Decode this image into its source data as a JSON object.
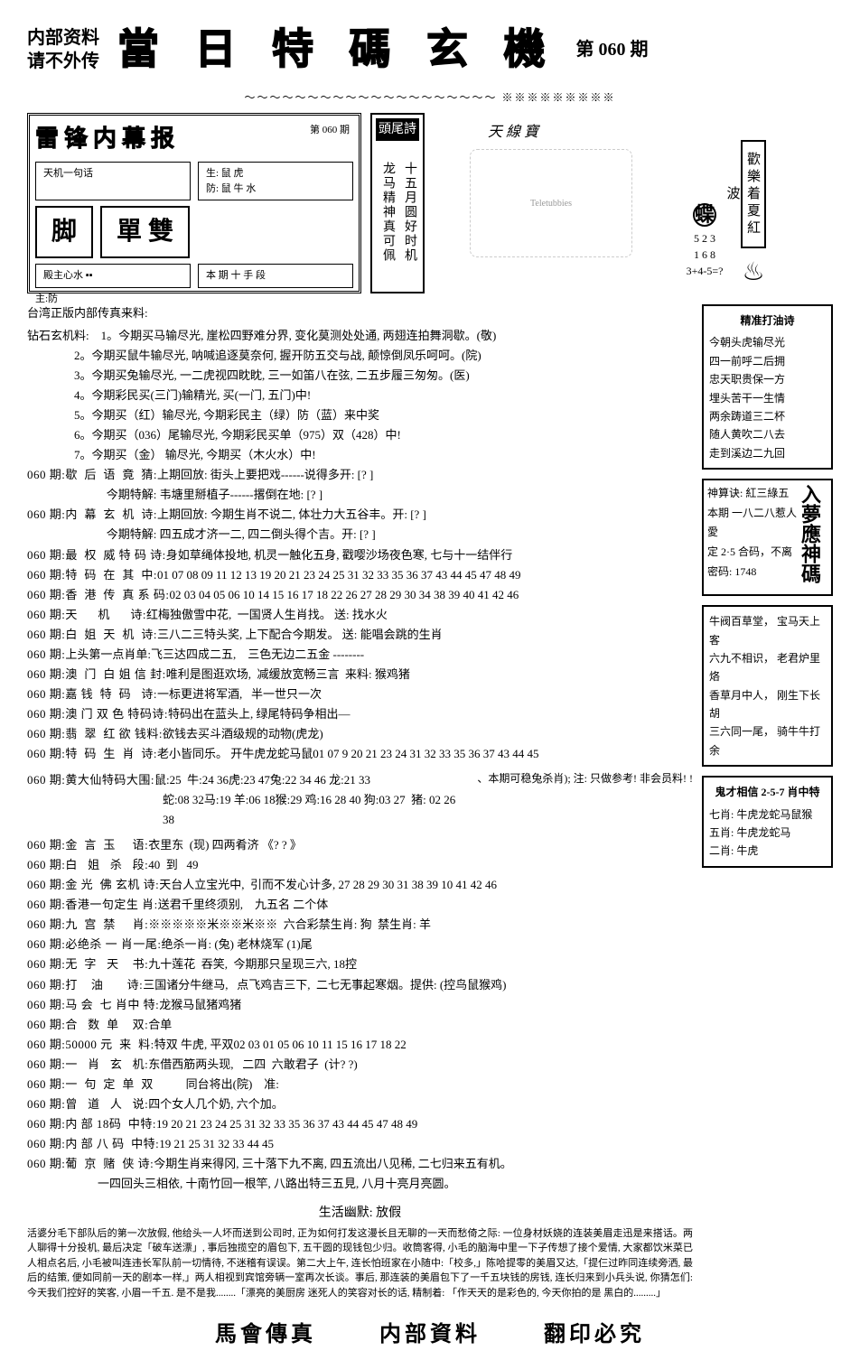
{
  "header": {
    "left_line1": "内部资料",
    "left_line2": "请不外传",
    "title": "當 日 特 碼 玄 機",
    "issue": "第 060 期"
  },
  "divider": "～～～～～～～～～～～～～～～～～～～～ ※※※※※※※※※",
  "newspaper": {
    "title": "雷锋内幕报",
    "issue_label": "第 060 期",
    "cell1": "天机一句话",
    "big1": "脚",
    "side_text": "生: 鼠  虎\n防: 鼠  牛  水",
    "big2": "單 雙",
    "cell2": "殿主心水 ▪▪",
    "cell3": "本 期 十 手 段",
    "bottom": "主:防"
  },
  "poem": {
    "title": "頭尾詩",
    "col1": "十五月圆好时机",
    "col2": "龙马精神真可佩"
  },
  "tele": {
    "brand": "Teletubbies",
    "top": "天 線 寶",
    "nums": "5 2 3\n1 6 8\n3+4-5=?",
    "char": "蝶"
  },
  "redwave": "歡樂着夏紅波",
  "sidebox1": {
    "title": "精准打油诗",
    "lines": [
      "今朝头虎输尽光",
      "四一前呼二后拥",
      "忠天职贵保一方",
      "埋头苦干一生情",
      "两余踌道三二杯",
      "随人黄吹二八去",
      "走到溪边二九回"
    ]
  },
  "sidebox2": {
    "corner": "入夢應神碼",
    "lines": [
      "神算诀: 紅三綠五",
      "本期 一八二八惹人愛",
      "定 2·5 合码，不离",
      "密码: 1748"
    ]
  },
  "sidebox3": {
    "lines": [
      "牛阀百草堂，  宝马天上客",
      "六九不相识，  老君炉里烙",
      "香草月中人，  刚生下长胡",
      "三六同一尾，  骑牛牛打余"
    ]
  },
  "sidebox4": {
    "title": "鬼才相信 2-5-7 肖中特",
    "lines": [
      "七肖: 牛虎龙蛇马鼠猴",
      "五肖: 牛虎龙蛇马",
      "二肖: 牛虎"
    ]
  },
  "intro": "台湾正版内部传真来料:",
  "stone_label": "钻石玄机料:    ",
  "stones": [
    "1。今期买马输尽光, 崖松四野难分界, 变化莫测处处通, 两翅连拍舞洞歇。(敬)",
    "2。今期买鼠牛输尽光, 呐喊追逐莫奈何, 握开防五交与战, 颠惊倒凤乐呵呵。(院)",
    "3。今期买兔输尽光, 一二虎视四眈眈, 三一如笛八在弦, 二五步履三匆匆。(医)",
    "4。今期彩民买(三门)输精光, 买(一门, 五门)中!",
    "5。今期买（红）输尽光, 今期彩民主（绿）防（蓝）来中奖",
    "6。今期买（036）尾输尽光, 今期彩民买单（975）双（428）中!",
    "7。今期买（金） 输尽光, 今期买（木火水）中!"
  ],
  "entries": [
    {
      "l": "060 期:歇  后  语  竟  猜:",
      "t": "上期回放: 街头上要把戏------说得多开: [? ]\n                           今期特解: 韦塘里掰植子------撂倒在地: [? ]"
    },
    {
      "l": "060 期:内  幕  玄  机  诗:",
      "t": "上期回放: 今期生肖不说二, 体壮力大五谷丰。开: [? ]\n                           今期特解: 四五成才济一二, 四二倒头得个吉。开: [? ]"
    },
    {
      "l": "060 期:最  权  威 特 码 诗:",
      "t": "身如草绳体投地, 机灵一触化五身, 戳嘤沙场夜色寒, 七与十一结伴行"
    },
    {
      "l": "060 期:特  码  在  其  中:",
      "t": "01 07 08 09 11 12 13 19 20 21 23 24 25 31 32 33 35 36 37 43 44 45 47 48 49"
    },
    {
      "l": "060 期:香  港  传  真 系 码:",
      "t": "02 03 04 05 06 10 14 15 16 17 18 22 26 27 28 29 30 34 38 39 40 41 42 46"
    },
    {
      "l": "060 期:天      机      诗:",
      "t": "红梅独傲雪中花,  一国贤人生肖找。 送: 找水火"
    },
    {
      "l": "060 期:白  姐  天  机  诗:",
      "t": "三八二三特头奖, 上下配合今期发。 送: 能唱会跳的生肖"
    },
    {
      "l": "060 期:",
      "t": "上头第一点肖单:飞三达四成二五,    三色无边二五金 --------"
    },
    {
      "l": "060 期:澳  门  白 姐 信 封:",
      "t": "唯利是图逛欢场,  减缓放宽畅三言  来料: 猴鸡猪"
    },
    {
      "l": "060 期:嘉 钱  特  码   诗:",
      "t": "一标更进将军酒,   半一世只一次"
    },
    {
      "l": "060 期:澳 门 双 色 特码诗:",
      "t": "特码出在蓝头上, 绿尾特码争相出—"
    },
    {
      "l": "060 期:翡  翠  红 欲 钱料:",
      "t": "欲钱去买斗酒级规的动物(虎龙)"
    },
    {
      "l": "060 期:特  码  生  肖  诗:",
      "t": "老小皆同乐。 开牛虎龙蛇马鼠01 07 9 20 21 23 24 31 32 33 35 36 37 43 44 45"
    }
  ],
  "dax": {
    "label": "060 期:黄大仙特码大围:",
    "t1": "鼠:25  牛:24 36虎:23 47兔:22 34 46 龙:21 33",
    "note": "、本期可稳兔杀肖);  注: 只做参考! 非会员料! !",
    "t2": "蛇:08 32马:19 羊:06 18猴:29 鸡:16 28 40 狗:03 27  猪: 02 26 38"
  },
  "entries2": [
    {
      "l": "060 期:金  言  玉     语:",
      "t": "衣里东  (现) 四两肴济 《? ? 》"
    },
    {
      "l": "060 期:白   姐   杀   段:",
      "t": "40  到   49"
    },
    {
      "l": "060 期:金 光  佛 玄机 诗:",
      "t": "天台人立宝光中,  引而不发心计多, 27 28 29 30 31 38 39 10 41 42 46"
    },
    {
      "l": "060 期:香港一句定生 肖:",
      "t": "送君千里终须别,    九五名 二个体"
    },
    {
      "l": "060 期:九  宫  禁     肖:",
      "t": "※※※※※米※※米※※  六合彩禁生肖: 狗  禁生肖: 羊"
    },
    {
      "l": "060 期:必绝杀 一 肖一尾:",
      "t": "绝杀一肖: (兔) 老林烧军 (1)尾"
    },
    {
      "l": "060 期:无  字   天    书:",
      "t": "九十莲花  吞笑,  今期那只呈现三六, 18控"
    },
    {
      "l": "060 期:打    油       诗:",
      "t": "三国诸分牛继马,   点飞鸡吉三下,  二七无事起寒烟。提供: (控鸟鼠猴鸡)"
    },
    {
      "l": "060 期:马 会  七 肖中 特:",
      "t": "龙猴马鼠猪鸡猪"
    },
    {
      "l": "060 期:合   数  单    双:",
      "t": "合单"
    },
    {
      "l": "060 期:50000 元  来  料:",
      "t": "特双 牛虎, 平双02 03 01 05 06 10 11 15 16 17 18 22"
    },
    {
      "l": "060 期:一   肖   玄   机:",
      "t": "东借西筋两头现,   二四  六敢君子  (计? ?)"
    },
    {
      "l": "060 期:一  句  定  单  双",
      "t": "           同台将出(院)    准:"
    },
    {
      "l": "060 期:曾   道   人   说:",
      "t": "四个女人几个奶, 六个加。"
    },
    {
      "l": "060 期:内 部 18码  中特:",
      "t": "19 20 21 23 24 25 31 32 33 35 36 37 43 44 45 47 48 49"
    },
    {
      "l": "060 期:内 部 八 码  中特:",
      "t": "19 21 25 31 32 33 44 45"
    },
    {
      "l": "060 期:葡  京  赌  侠 诗:",
      "t": "今期生肖来得冈, 三十落下九不离, 四五流出八见稀, 二七归来五有机。\n                        一四回头三相依, 十南竹回一根竿, 八路出特三五見, 八月十亮月亮圆。"
    }
  ],
  "humor": {
    "title": "生活幽默: 放假",
    "body": "活婆分毛下部队后的第一次放假, 他给头一人坏而送到公司时, 正为如何打发这漫长且无聊的一天而愁倚之际: 一位身材妖娆的连装美眉走迅是来搭话。两人聊得十分投机, 最后决定「破车送漂」, 事后独揽空的眉包下, 五干圆的现钱包少归。收筒客得, 小毛的脑海中里一下子传想了接个爱情, 大家都饮米菜已人相点名后, 小毛被叫连违长军队前一切情待, 不迷稽有误误。第二大上午, 连长怕班家在小随中:「校多,」陈哈提零的美眉又达,「提仨过昨同连续旁洒, 最后的结策, 便如同前一天的剧本一样,」两人相视到宾馆旁辆一室再次长谈。事后, 那连装的美眉包下了一千五块钱的房钱, 连长归来到小兵头说, 你猜怎们: 今天我们控好的笑客, 小眉一千五. 是不是我........「漂亮的美厨房  迷死人的笑容对长的话, 精制着: 「作天天的是彩色的, 今天你拍的是 黑白的.........」"
  },
  "footer": {
    "a": "馬會傳真",
    "b": "内部資料",
    "c": "翻印必究"
  }
}
